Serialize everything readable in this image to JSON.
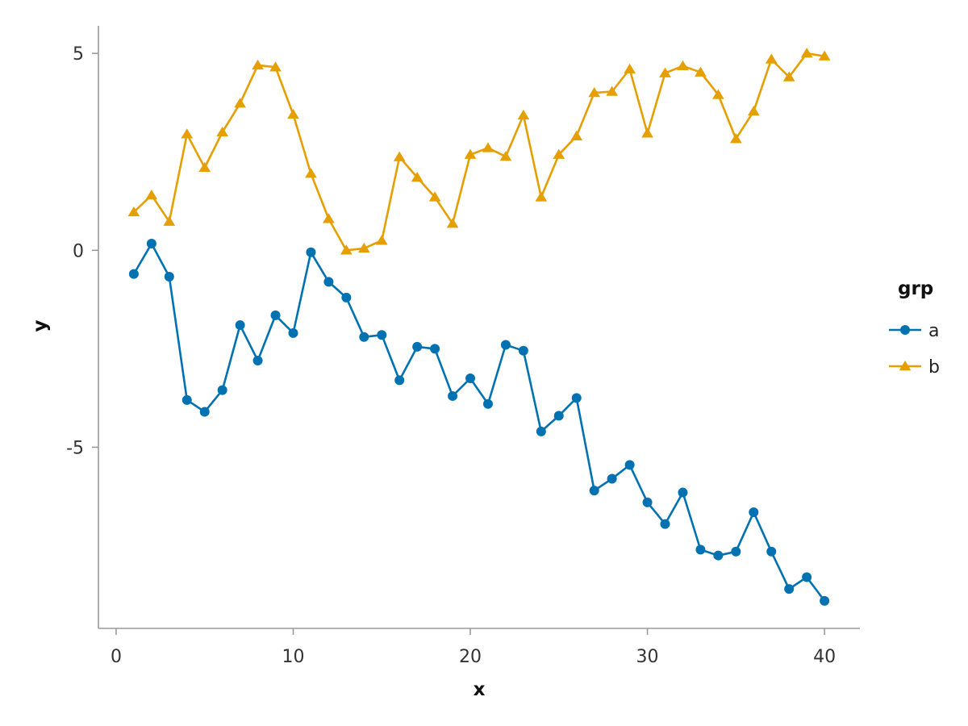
{
  "chart_data": {
    "type": "line",
    "title": "",
    "xlabel": "x",
    "ylabel": "y",
    "xlim": [
      -1,
      42
    ],
    "ylim": [
      -9.6,
      5.7
    ],
    "xticks": [
      0,
      10,
      20,
      30,
      40
    ],
    "xtick_labels": [
      "0",
      "10",
      "20",
      "30",
      "40"
    ],
    "yticks": [
      5,
      0,
      -5
    ],
    "ytick_labels": [
      "5",
      "0",
      "-5"
    ],
    "grid": false,
    "legend": {
      "title": "grp",
      "position": "right"
    },
    "series": [
      {
        "name": "a",
        "color": "#0072B2",
        "marker": "circle",
        "x": [
          1,
          2,
          3,
          4,
          5,
          6,
          7,
          8,
          9,
          10,
          11,
          12,
          13,
          14,
          15,
          16,
          17,
          18,
          19,
          20,
          21,
          22,
          23,
          24,
          25,
          26,
          27,
          28,
          29,
          30,
          31,
          32,
          33,
          34,
          35,
          36,
          37,
          38,
          39,
          40
        ],
        "y": [
          -0.6,
          0.17,
          -0.67,
          -3.8,
          -4.1,
          -3.55,
          -1.9,
          -2.8,
          -1.65,
          -2.1,
          -0.05,
          -0.8,
          -1.2,
          -2.2,
          -2.15,
          -3.3,
          -2.45,
          -2.5,
          -3.7,
          -3.25,
          -3.9,
          -2.4,
          -2.55,
          -4.6,
          -4.2,
          -3.75,
          -6.1,
          -5.8,
          -5.45,
          -6.4,
          -6.95,
          -6.15,
          -7.6,
          -7.75,
          -7.65,
          -6.65,
          -7.65,
          -8.6,
          -8.3,
          -8.9
        ]
      },
      {
        "name": "b",
        "color": "#E69F00",
        "marker": "triangle",
        "x": [
          1,
          2,
          3,
          4,
          5,
          6,
          7,
          8,
          9,
          10,
          11,
          12,
          13,
          14,
          15,
          16,
          17,
          18,
          19,
          20,
          21,
          22,
          23,
          24,
          25,
          26,
          27,
          28,
          29,
          30,
          31,
          32,
          33,
          34,
          35,
          36,
          37,
          38,
          39,
          40
        ],
        "y": [
          0.97,
          1.4,
          0.73,
          2.95,
          2.1,
          3.0,
          3.73,
          4.7,
          4.65,
          3.45,
          1.95,
          0.8,
          0.0,
          0.05,
          0.25,
          2.37,
          1.85,
          1.35,
          0.68,
          2.43,
          2.6,
          2.38,
          3.43,
          1.35,
          2.43,
          2.9,
          4.0,
          4.03,
          4.6,
          2.97,
          4.5,
          4.68,
          4.52,
          3.95,
          2.83,
          3.53,
          4.85,
          4.4,
          5.0,
          4.93
        ]
      }
    ]
  }
}
